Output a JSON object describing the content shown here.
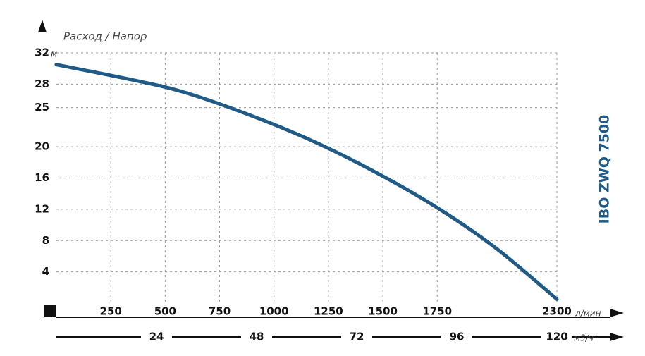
{
  "chart_data": {
    "type": "line",
    "axis_label": "Расход / Напор",
    "title": "IBO ZWQ 7500",
    "y_unit": "м",
    "x_unit": "л/мин",
    "x2_unit": "м3/ч",
    "x": [
      0,
      340,
      583,
      865,
      1156,
      1442,
      1727,
      2012,
      2300
    ],
    "series": [
      {
        "name": "IBO ZWQ 7500",
        "color": "#1f5b86",
        "values": [
          30.5,
          28.6,
          27.0,
          24.3,
          21.0,
          17.1,
          12.6,
          7.2,
          0.5
        ]
      }
    ],
    "xlim": [
      0,
      2300
    ],
    "xticks": [
      250,
      500,
      750,
      1000,
      1250,
      1500,
      1750,
      2300
    ],
    "x2lim": [
      0,
      120
    ],
    "x2ticks": [
      24,
      48,
      72,
      96,
      120
    ],
    "ylim": [
      0,
      32
    ],
    "yticks": [
      4,
      8,
      12,
      16,
      20,
      25,
      28,
      32
    ],
    "grid": true
  }
}
